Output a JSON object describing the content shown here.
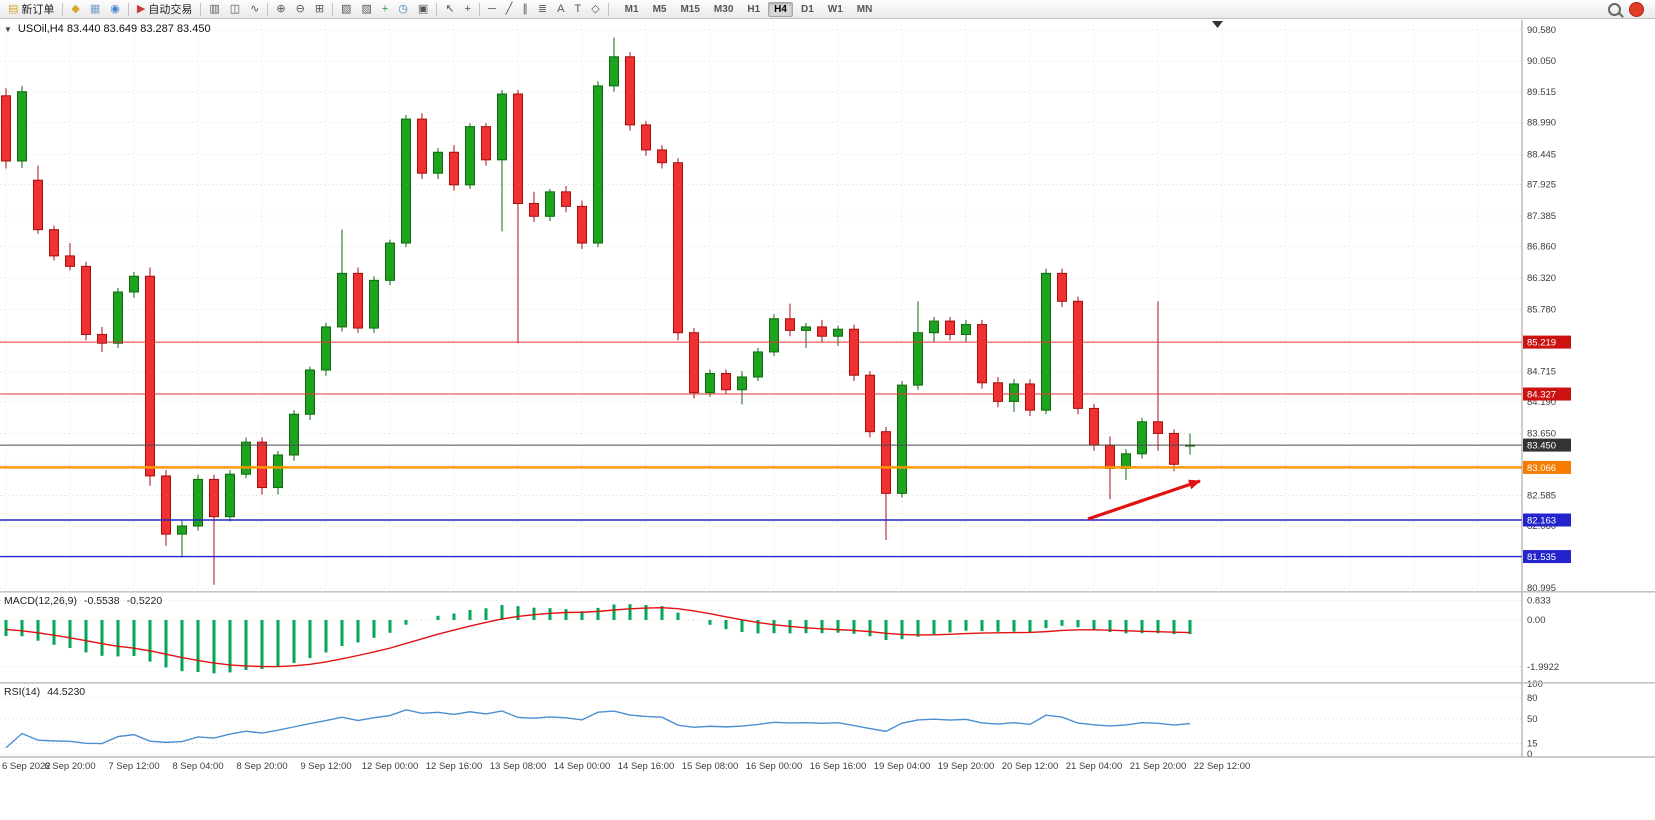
{
  "ui": {
    "collapse_glyph": "▼"
  },
  "toolbar": {
    "items": [
      {
        "name": "new-order-button",
        "glyph": "▤",
        "glyph_color": "#d9a62e",
        "label": "新订单"
      },
      {
        "name": "separator"
      },
      {
        "name": "favorites-icon",
        "glyph": "◆",
        "glyph_color": "#d9a62e"
      },
      {
        "name": "depth-of-market-icon",
        "glyph": "▦",
        "glyph_color": "#7a9cc4"
      },
      {
        "name": "metaquotes-community-icon",
        "glyph": "◉",
        "glyph_color": "#3d85c8"
      },
      {
        "name": "separator"
      },
      {
        "name": "autotrading-button",
        "glyph": "▶",
        "glyph_color": "#c43d3d",
        "label": "自动交易"
      },
      {
        "name": "separator"
      },
      {
        "name": "bar-chart-icon",
        "glyph": "▥"
      },
      {
        "name": "candlestick-chart-icon",
        "glyph": "◫"
      },
      {
        "name": "line-chart-icon",
        "glyph": "∿"
      },
      {
        "name": "separator"
      },
      {
        "name": "zoom-in-icon",
        "glyph": "⊕"
      },
      {
        "name": "zoom-out-icon",
        "glyph": "⊖"
      },
      {
        "name": "tile-windows-icon",
        "glyph": "⊞"
      },
      {
        "name": "separator"
      },
      {
        "name": "new-chart-icon",
        "glyph": "▧"
      },
      {
        "name": "profiles-icon",
        "glyph": "▨"
      },
      {
        "name": "add-indicator-icon",
        "glyph": "+",
        "glyph_color": "#2a9c3a"
      },
      {
        "name": "period-icon",
        "glyph": "◷",
        "glyph_color": "#3d85c8"
      },
      {
        "name": "templates-icon",
        "glyph": "▣"
      },
      {
        "name": "separator"
      },
      {
        "name": "cursor-icon",
        "glyph": "↖"
      },
      {
        "name": "crosshair-icon",
        "glyph": "+"
      },
      {
        "name": "separator"
      },
      {
        "name": "horizontal-line-icon",
        "glyph": "─"
      },
      {
        "name": "trendline-icon",
        "glyph": "╱"
      },
      {
        "name": "channel-icon",
        "glyph": "∥"
      },
      {
        "name": "fibonacci-icon",
        "glyph": "≣"
      },
      {
        "name": "text-icon",
        "glyph": "A"
      },
      {
        "name": "text-label-icon",
        "glyph": "T"
      },
      {
        "name": "shapes-icon",
        "glyph": "◇"
      },
      {
        "name": "separator"
      }
    ],
    "timeframes": [
      "M1",
      "M5",
      "M15",
      "M30",
      "H1",
      "H4",
      "D1",
      "W1",
      "MN"
    ],
    "active_timeframe": "H4"
  },
  "colors": {
    "candle_up": "#21a121",
    "candle_up_border": "#0b6b0b",
    "candle_down": "#f23030",
    "candle_down_border": "#a01010",
    "macd_hist": "#00a651",
    "macd_signal": "#e01212",
    "rsi_line": "#4a8fd4",
    "grid": "#dedede",
    "axis_text": "#3c3c3c",
    "background": "#ffffff"
  },
  "chart_data": {
    "type": "candlestick",
    "symbol": "USOil",
    "timeframe": "H4",
    "title": "USOil,H4 83.440 83.649 83.287 83.450",
    "ohlc_current": {
      "open": "83.440",
      "high": "83.649",
      "low": "83.287",
      "close": "83.450"
    },
    "price_ticks": [
      "90.580",
      "90.050",
      "89.515",
      "88.990",
      "88.445",
      "87.925",
      "87.385",
      "86.860",
      "86.320",
      "85.780",
      "85.255",
      "84.715",
      "84.190",
      "83.650",
      "83.125",
      "82.585",
      "82.060",
      "81.530",
      "80.995"
    ],
    "time_labels": [
      "6 Sep 2022",
      "6 Sep 20:00",
      "7 Sep 12:00",
      "8 Sep 04:00",
      "8 Sep 20:00",
      "9 Sep 12:00",
      "12 Sep 00:00",
      "12 Sep 16:00",
      "13 Sep 08:00",
      "14 Sep 00:00",
      "14 Sep 16:00",
      "15 Sep 08:00",
      "16 Sep 00:00",
      "16 Sep 16:00",
      "19 Sep 04:00",
      "19 Sep 20:00",
      "20 Sep 12:00",
      "21 Sep 04:00",
      "21 Sep 20:00",
      "22 Sep 12:00"
    ],
    "price_range": {
      "max": 90.58,
      "min": 80.995
    },
    "candles": [
      [
        89.45,
        89.58,
        88.2,
        88.33
      ],
      [
        88.33,
        89.62,
        88.21,
        89.52
      ],
      [
        88.0,
        88.25,
        87.08,
        87.15
      ],
      [
        87.15,
        87.22,
        86.62,
        86.7
      ],
      [
        86.7,
        86.92,
        86.45,
        86.52
      ],
      [
        86.52,
        86.6,
        85.25,
        85.35
      ],
      [
        85.35,
        85.48,
        85.05,
        85.2
      ],
      [
        85.2,
        86.15,
        85.12,
        86.08
      ],
      [
        86.08,
        86.42,
        85.98,
        86.35
      ],
      [
        86.35,
        86.5,
        82.75,
        82.92
      ],
      [
        82.92,
        83.02,
        81.72,
        81.92
      ],
      [
        81.92,
        82.15,
        81.52,
        82.06
      ],
      [
        82.06,
        82.94,
        81.98,
        82.86
      ],
      [
        82.86,
        82.94,
        81.05,
        82.22
      ],
      [
        82.22,
        83.02,
        82.14,
        82.95
      ],
      [
        82.95,
        83.58,
        82.88,
        83.5
      ],
      [
        83.5,
        83.58,
        82.6,
        82.72
      ],
      [
        82.72,
        83.35,
        82.6,
        83.28
      ],
      [
        83.28,
        84.05,
        83.18,
        83.98
      ],
      [
        83.98,
        84.8,
        83.88,
        84.74
      ],
      [
        84.74,
        85.55,
        84.64,
        85.48
      ],
      [
        85.48,
        87.15,
        85.4,
        86.4
      ],
      [
        86.4,
        86.5,
        85.38,
        85.46
      ],
      [
        85.46,
        86.35,
        85.38,
        86.28
      ],
      [
        86.28,
        86.98,
        86.2,
        86.92
      ],
      [
        86.92,
        89.12,
        86.85,
        89.05
      ],
      [
        89.05,
        89.15,
        88.02,
        88.12
      ],
      [
        88.12,
        88.55,
        88.02,
        88.48
      ],
      [
        88.48,
        88.6,
        87.82,
        87.92
      ],
      [
        87.92,
        88.98,
        87.85,
        88.92
      ],
      [
        88.92,
        88.98,
        88.25,
        88.35
      ],
      [
        88.35,
        89.55,
        87.12,
        89.48
      ],
      [
        89.48,
        89.55,
        85.2,
        87.6
      ],
      [
        87.6,
        87.8,
        87.28,
        87.38
      ],
      [
        87.38,
        87.85,
        87.3,
        87.8
      ],
      [
        87.8,
        87.9,
        87.45,
        87.55
      ],
      [
        87.55,
        87.65,
        86.82,
        86.92
      ],
      [
        86.92,
        89.7,
        86.85,
        89.62
      ],
      [
        89.62,
        90.45,
        89.52,
        90.12
      ],
      [
        90.12,
        90.2,
        88.85,
        88.95
      ],
      [
        88.95,
        89.02,
        88.42,
        88.52
      ],
      [
        88.52,
        88.6,
        88.2,
        88.3
      ],
      [
        88.3,
        88.38,
        85.25,
        85.38
      ],
      [
        85.38,
        85.46,
        84.25,
        84.35
      ],
      [
        84.35,
        84.75,
        84.28,
        84.68
      ],
      [
        84.68,
        84.75,
        84.32,
        84.4
      ],
      [
        84.4,
        84.72,
        84.15,
        84.62
      ],
      [
        84.62,
        85.12,
        84.55,
        85.05
      ],
      [
        85.05,
        85.7,
        84.98,
        85.62
      ],
      [
        85.62,
        85.88,
        85.32,
        85.42
      ],
      [
        85.42,
        85.55,
        85.12,
        85.48
      ],
      [
        85.48,
        85.6,
        85.22,
        85.32
      ],
      [
        85.32,
        85.5,
        85.15,
        85.44
      ],
      [
        85.44,
        85.52,
        84.55,
        84.65
      ],
      [
        84.65,
        84.72,
        83.58,
        83.68
      ],
      [
        83.68,
        83.76,
        81.82,
        82.62
      ],
      [
        82.62,
        84.55,
        82.55,
        84.48
      ],
      [
        84.48,
        85.92,
        84.4,
        85.38
      ],
      [
        85.38,
        85.65,
        85.22,
        85.58
      ],
      [
        85.58,
        85.65,
        85.25,
        85.35
      ],
      [
        85.35,
        85.6,
        85.22,
        85.52
      ],
      [
        85.52,
        85.6,
        84.42,
        84.52
      ],
      [
        84.52,
        84.62,
        84.1,
        84.2
      ],
      [
        84.2,
        84.58,
        84.02,
        84.5
      ],
      [
        84.5,
        84.58,
        83.95,
        84.05
      ],
      [
        84.05,
        86.48,
        83.98,
        86.4
      ],
      [
        86.4,
        86.48,
        85.82,
        85.92
      ],
      [
        85.92,
        86.0,
        83.98,
        84.08
      ],
      [
        84.08,
        84.16,
        83.35,
        83.45
      ],
      [
        83.45,
        83.6,
        82.52,
        83.05
      ],
      [
        83.05,
        83.38,
        82.85,
        83.3
      ],
      [
        83.3,
        83.92,
        83.22,
        83.85
      ],
      [
        83.85,
        85.92,
        83.35,
        83.65
      ],
      [
        83.65,
        83.72,
        83.0,
        83.12
      ],
      [
        83.44,
        83.649,
        83.287,
        83.45
      ]
    ],
    "levels": [
      {
        "name": "resistance-line-1",
        "price": 85.219,
        "label": "85.219",
        "color": "#e53535",
        "width": 1,
        "badge": "#cc1111"
      },
      {
        "name": "resistance-line-2",
        "price": 84.327,
        "label": "84.327",
        "color": "#e53535",
        "width": 1,
        "badge": "#cc1111"
      },
      {
        "name": "current-price-line",
        "price": 83.45,
        "label": "83.450",
        "color": "#4a4a4a",
        "width": 1,
        "badge": "#333333"
      },
      {
        "name": "support-line-orange",
        "price": 83.066,
        "label": "83.066",
        "color": "#ff9800",
        "width": 2.5,
        "badge": "#f57c00"
      },
      {
        "name": "support-line-blue-1",
        "price": 82.163,
        "label": "82.163",
        "color": "#2424cc",
        "width": 1.4,
        "badge": "#2424cc"
      },
      {
        "name": "support-line-blue-2",
        "price": 81.535,
        "label": "81.535",
        "color": "#2424cc",
        "width": 1.4,
        "badge": "#2424cc"
      }
    ],
    "indicators": [
      {
        "type": "MACD",
        "label": "MACD(12,26,9)",
        "params": [
          12,
          26,
          9
        ],
        "values_text": [
          "-0.5538",
          "-0.5220"
        ],
        "ticks": [
          "0.833",
          "0.00",
          "-1.9922"
        ]
      },
      {
        "type": "RSI",
        "label": "RSI(14)",
        "params": [
          14
        ],
        "values_text": [
          "44.5230"
        ],
        "ticks": [
          "100",
          "80",
          "50",
          "15",
          "0"
        ]
      }
    ],
    "annotations": [
      {
        "type": "arrow",
        "name": "trend-arrow",
        "color": "#e01212",
        "from": [
          1088,
          519
        ],
        "to": [
          1200,
          481
        ]
      }
    ]
  }
}
